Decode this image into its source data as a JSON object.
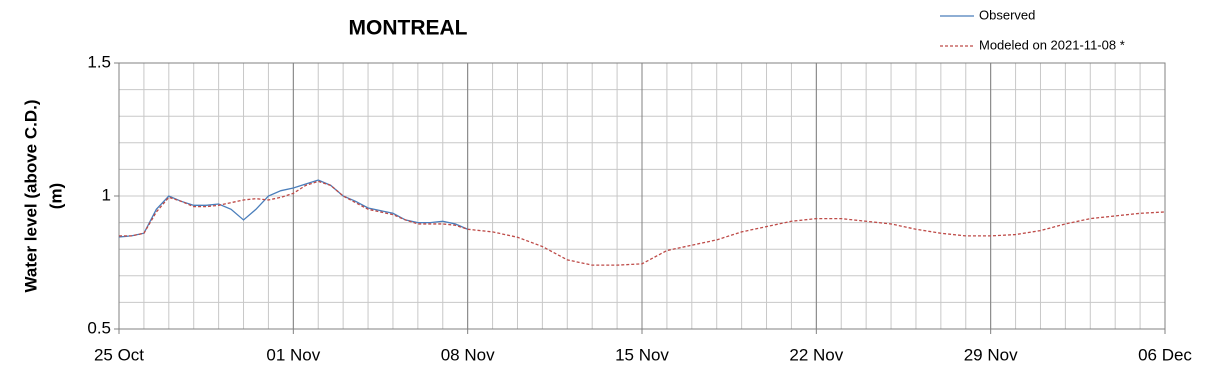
{
  "chart_data": {
    "type": "line",
    "title": "MONTREAL",
    "y_label": [
      "Water level (above C.D.)",
      "(m)"
    ],
    "xlim": [
      0,
      42
    ],
    "xticks": [
      {
        "value": 0,
        "label": "25 Oct"
      },
      {
        "value": 7,
        "label": "01 Nov"
      },
      {
        "value": 14,
        "label": "08 Nov"
      },
      {
        "value": 21,
        "label": "15 Nov"
      },
      {
        "value": 28,
        "label": "22 Nov"
      },
      {
        "value": 35,
        "label": "29 Nov"
      },
      {
        "value": 42,
        "label": "06 Dec"
      }
    ],
    "xminorticks": [
      0,
      1,
      2,
      3,
      4,
      5,
      6,
      7,
      8,
      9,
      10,
      11,
      12,
      13,
      14,
      15,
      16,
      17,
      18,
      19,
      20,
      21,
      22,
      23,
      24,
      25,
      26,
      27,
      28,
      29,
      30,
      31,
      32,
      33,
      34,
      35,
      36,
      37,
      38,
      39,
      40,
      41,
      42
    ],
    "ylim": [
      0.5,
      1.5
    ],
    "yticks": [
      0.5,
      1,
      1.5
    ],
    "yminorticks": [
      0.5,
      0.6,
      0.7,
      0.8,
      0.9,
      1,
      1.1,
      1.2,
      1.3,
      1.4,
      1.5
    ],
    "grid": true,
    "legend": "top-right",
    "series": [
      {
        "name": "Observed",
        "color": "#4a7ebb",
        "dash": false,
        "x": [
          0,
          0.5,
          1,
          1.5,
          2,
          2.5,
          3,
          3.5,
          4,
          4.5,
          5,
          5.5,
          6,
          6.5,
          7,
          7.5,
          8,
          8.5,
          9,
          9.5,
          10,
          10.5,
          11,
          11.5,
          12,
          12.5,
          13,
          13.5,
          14
        ],
        "values": [
          0.846,
          0.85,
          0.86,
          0.95,
          1.0,
          0.98,
          0.965,
          0.965,
          0.97,
          0.95,
          0.91,
          0.95,
          1.0,
          1.02,
          1.03,
          1.045,
          1.06,
          1.04,
          1.0,
          0.98,
          0.955,
          0.945,
          0.935,
          0.91,
          0.9,
          0.9,
          0.905,
          0.895,
          0.875
        ]
      },
      {
        "name": "Modeled on 2021-11-08 *",
        "color": "#be4b48",
        "dash": true,
        "x": [
          0,
          0.5,
          1,
          1.5,
          2,
          2.5,
          3,
          3.5,
          4,
          4.5,
          5,
          5.5,
          6,
          6.5,
          7,
          7.5,
          8,
          8.5,
          9,
          9.5,
          10,
          10.5,
          11,
          11.5,
          12,
          12.5,
          13,
          13.5,
          14,
          15,
          16,
          17,
          18,
          19,
          20,
          21,
          22,
          23,
          24,
          25,
          26,
          27,
          28,
          29,
          30,
          31,
          32,
          33,
          34,
          35,
          36,
          37,
          38,
          39,
          40,
          41,
          42
        ],
        "values": [
          0.85,
          0.85,
          0.86,
          0.94,
          0.995,
          0.98,
          0.96,
          0.96,
          0.965,
          0.975,
          0.985,
          0.99,
          0.985,
          0.995,
          1.01,
          1.04,
          1.055,
          1.04,
          1.0,
          0.975,
          0.95,
          0.94,
          0.93,
          0.91,
          0.895,
          0.895,
          0.895,
          0.89,
          0.875,
          0.865,
          0.845,
          0.81,
          0.76,
          0.74,
          0.74,
          0.745,
          0.795,
          0.815,
          0.835,
          0.865,
          0.885,
          0.905,
          0.915,
          0.915,
          0.905,
          0.895,
          0.875,
          0.86,
          0.85,
          0.85,
          0.855,
          0.87,
          0.895,
          0.915,
          0.925,
          0.935,
          0.94
        ]
      }
    ]
  }
}
